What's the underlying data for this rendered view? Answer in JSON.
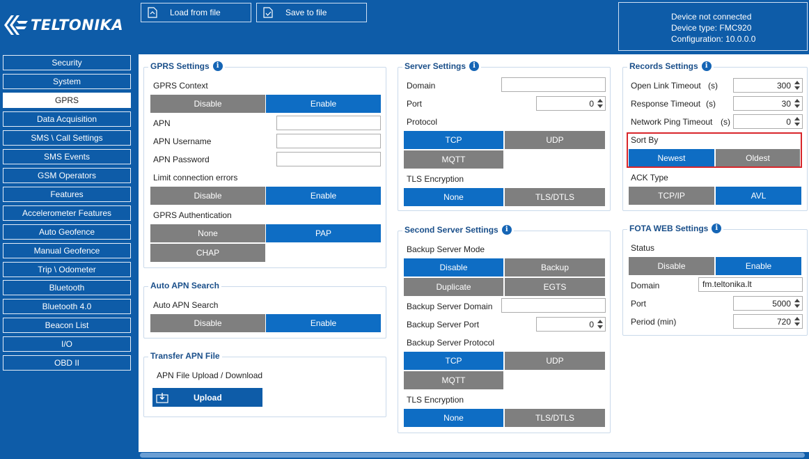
{
  "brand": {
    "name": "TELTONIKA"
  },
  "toolbar": {
    "load_label": "Load from file",
    "save_label": "Save to file"
  },
  "device": {
    "status": "Device not connected",
    "type": "Device type: FMC920",
    "config": "Configuration: 10.0.0.0"
  },
  "sidebar": {
    "items": [
      "Security",
      "System",
      "GPRS",
      "Data Acquisition",
      "SMS \\ Call Settings",
      "SMS Events",
      "GSM Operators",
      "Features",
      "Accelerometer Features",
      "Auto Geofence",
      "Manual Geofence",
      "Trip \\ Odometer",
      "Bluetooth",
      "Bluetooth 4.0",
      "Beacon List",
      "I/O",
      "OBD II"
    ],
    "active": "GPRS"
  },
  "gprs": {
    "title": "GPRS Settings",
    "context_label": "GPRS Context",
    "disable": "Disable",
    "enable": "Enable",
    "apn": "APN",
    "apn_username": "APN Username",
    "apn_password": "APN Password",
    "apn_value": "",
    "apn_username_value": "",
    "apn_password_value": "",
    "limit_label": "Limit connection errors",
    "auth_label": "GPRS Authentication",
    "auth_none": "None",
    "auth_pap": "PAP",
    "auth_chap": "CHAP"
  },
  "auto_apn": {
    "title": "Auto APN Search",
    "label": "Auto APN Search",
    "disable": "Disable",
    "enable": "Enable"
  },
  "transfer_apn": {
    "title": "Transfer APN File",
    "label": "APN File Upload / Download",
    "upload": "Upload"
  },
  "server": {
    "title": "Server Settings",
    "domain_label": "Domain",
    "domain_value": "",
    "port_label": "Port",
    "port_value": "0",
    "protocol_label": "Protocol",
    "tcp": "TCP",
    "udp": "UDP",
    "mqtt": "MQTT",
    "tls_label": "TLS Encryption",
    "tls_none": "None",
    "tls_dtls": "TLS/DTLS"
  },
  "second_server": {
    "title": "Second Server Settings",
    "mode_label": "Backup Server Mode",
    "disable": "Disable",
    "backup": "Backup",
    "duplicate": "Duplicate",
    "egts": "EGTS",
    "domain_label": "Backup Server Domain",
    "domain_value": "",
    "port_label": "Backup Server Port",
    "port_value": "0",
    "protocol_label": "Backup Server Protocol",
    "tcp": "TCP",
    "udp": "UDP",
    "mqtt": "MQTT",
    "tls_label": "TLS Encryption",
    "tls_none": "None",
    "tls_dtls": "TLS/DTLS"
  },
  "records": {
    "title": "Records Settings",
    "open_link_label": "Open Link Timeout",
    "response_label": "Response Timeout",
    "ping_label": "Network Ping Timeout",
    "unit": "(s)",
    "open_link_value": "300",
    "response_value": "30",
    "ping_value": "0",
    "sort_label": "Sort By",
    "newest": "Newest",
    "oldest": "Oldest",
    "ack_label": "ACK Type",
    "tcpip": "TCP/IP",
    "avl": "AVL"
  },
  "fota": {
    "title": "FOTA WEB Settings",
    "status_label": "Status",
    "disable": "Disable",
    "enable": "Enable",
    "domain_label": "Domain",
    "domain_value": "fm.teltonika.lt",
    "port_label": "Port",
    "port_value": "5000",
    "period_label": "Period (min)",
    "period_value": "720"
  },
  "colors": {
    "brand_blue": "#0e5ca8",
    "selected_blue": "#0e6dc4",
    "unselected_gray": "#7f7f7f",
    "highlight_red": "#d8262b"
  }
}
